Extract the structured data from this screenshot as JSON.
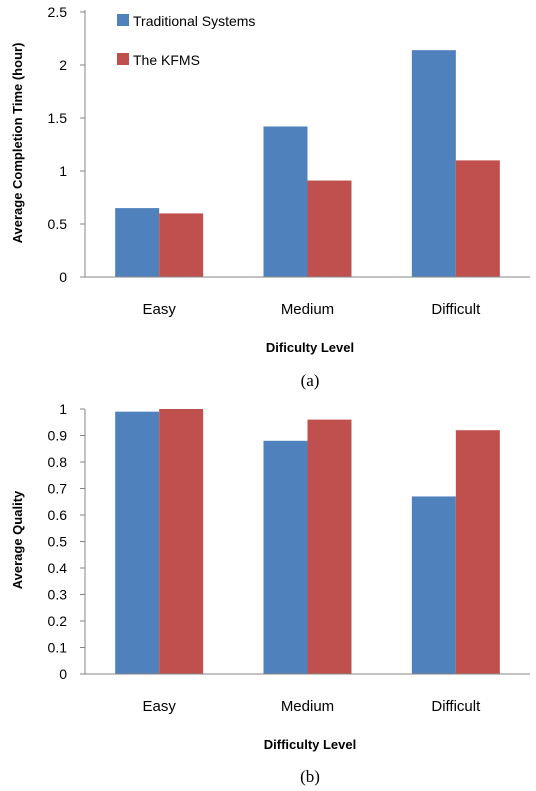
{
  "chart_data": [
    {
      "type": "bar",
      "categories": [
        "Easy",
        "Medium",
        "Difficult"
      ],
      "series": [
        {
          "name": "Traditional Systems",
          "color": "#4F81BD",
          "values": [
            0.65,
            1.42,
            2.14
          ]
        },
        {
          "name": "The KFMS",
          "color": "#C0504D",
          "values": [
            0.6,
            0.91,
            1.1
          ]
        }
      ],
      "xlabel": "Dificulty Level",
      "ylabel": "Average Completion Time (hour)",
      "ylim": [
        0,
        2.5
      ],
      "yticks": [
        "0",
        "0.5",
        "1",
        "1.5",
        "2",
        "2.5"
      ],
      "legend": "top-left",
      "grid": false,
      "caption": "(a)"
    },
    {
      "type": "bar",
      "categories": [
        "Easy",
        "Medium",
        "Difficult"
      ],
      "series": [
        {
          "name": "Traditional Systems",
          "color": "#4F81BD",
          "values": [
            0.99,
            0.88,
            0.67
          ]
        },
        {
          "name": "The KFMS",
          "color": "#C0504D",
          "values": [
            1.0,
            0.96,
            0.92
          ]
        }
      ],
      "xlabel": "Difficulty Level",
      "ylabel": "Average Quality",
      "ylim": [
        0,
        1
      ],
      "yticks": [
        "0",
        "0.1",
        "0.2",
        "0.3",
        "0.4",
        "0.5",
        "0.6",
        "0.7",
        "0.8",
        "0.9",
        "1"
      ],
      "legend": "none",
      "grid": false,
      "caption": "(b)"
    }
  ]
}
